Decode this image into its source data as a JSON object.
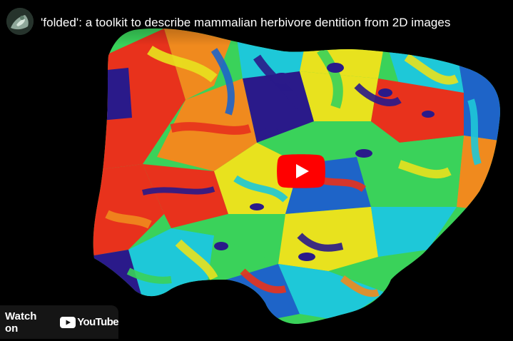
{
  "video": {
    "title": "'folded': a toolkit to describe mammalian herbivore dentition from 2D images"
  },
  "overlay": {
    "watch_on_label": "Watch on",
    "platform_word": "YouTube"
  },
  "icons": {
    "channel_avatar": "channel-avatar",
    "play": "play-icon",
    "logo": "youtube-logo-icon"
  },
  "colors": {
    "play_button": "#ff0000",
    "thumb_red": "#e8321c",
    "thumb_orange": "#f08a1e",
    "thumb_yellow": "#e8e21e",
    "thumb_green": "#3ad25a",
    "thumb_cyan": "#1ec8d8",
    "thumb_blue": "#1e64c8",
    "thumb_navy": "#2a1a8a"
  }
}
